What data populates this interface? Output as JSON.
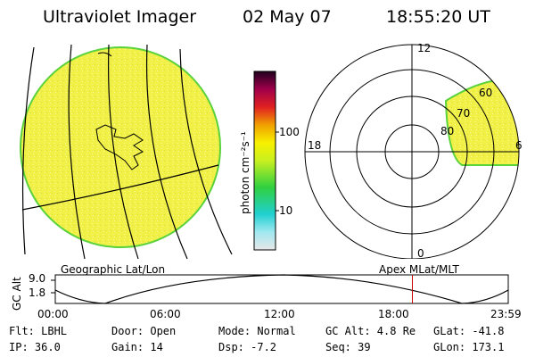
{
  "header": {
    "instrument": "Ultraviolet Imager",
    "date": "02 May 07",
    "time": "18:55:20 UT"
  },
  "colorbar": {
    "unit_label": "photon cm⁻²s⁻¹",
    "tick_100": "100",
    "tick_10": "10"
  },
  "polar": {
    "mlt_12": "12",
    "mlt_18": "18",
    "mlt_6": "6",
    "mlt_0": "0",
    "lat_60": "60",
    "lat_70": "70",
    "lat_80": "80"
  },
  "panel_labels": {
    "left": "Geographic Lat/Lon",
    "right": "Apex  MLat/MLT"
  },
  "altitude_plot": {
    "ylabel": "GC Alt",
    "y_max": "9.0",
    "y_min": "1.8",
    "x_ticks": [
      "00:00",
      "06:00",
      "12:00",
      "18:00",
      "23:59"
    ],
    "marker_time_hours": 18.92
  },
  "status": {
    "flt": "Flt: LBHL",
    "ip": "IP: 36.0",
    "door": "Door: Open",
    "gain": "Gain: 14",
    "mode": "Mode: Normal",
    "dsp": "Dsp:   -7.2",
    "gc_alt": "GC Alt: 4.8 Re",
    "seq": "Seq: 39",
    "glat": "GLat: -41.8",
    "glon": "GLon: 173.1"
  },
  "colors": {
    "aurora_fill": "#f0f046",
    "aurora_edge": "#5ad23c",
    "marker": "#c80000"
  }
}
